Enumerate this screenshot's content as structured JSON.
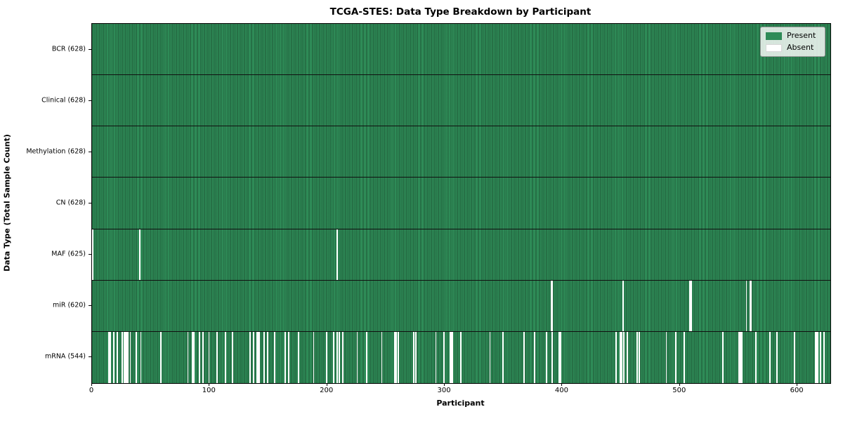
{
  "chart_data": {
    "type": "heatmap",
    "title": "TCGA-STES: Data Type Breakdown by Participant",
    "xlabel": "Participant",
    "ylabel": "Data Type (Total Sample Count)",
    "x_range": [
      0,
      628
    ],
    "x_ticks": [
      0,
      100,
      200,
      300,
      400,
      500,
      600
    ],
    "n_participants": 628,
    "grid": false,
    "legend_position": "upper right",
    "legend": {
      "present_label": "Present",
      "absent_label": "Absent",
      "present_color": "#2e8b57",
      "absent_color": "#ffffff"
    },
    "rows": [
      {
        "name": "bcr",
        "label": "BCR (628)",
        "present_count": 628,
        "absent_participants": []
      },
      {
        "name": "clinical",
        "label": "Clinical (628)",
        "present_count": 628,
        "absent_participants": []
      },
      {
        "name": "methylation",
        "label": "Methylation (628)",
        "present_count": 628,
        "absent_participants": []
      },
      {
        "name": "cn",
        "label": "CN (628)",
        "present_count": 628,
        "absent_participants": []
      },
      {
        "name": "maf",
        "label": "MAF (625)",
        "present_count": 625,
        "absent_participants": [
          0,
          40,
          208
        ]
      },
      {
        "name": "mir",
        "label": "miR (620)",
        "present_count": 620,
        "absent_participants": [
          390,
          391,
          451,
          508,
          509,
          556,
          559,
          560
        ]
      },
      {
        "name": "mrna",
        "label": "mRNA (544)",
        "present_count": 544,
        "absent_participants": [
          14,
          15,
          18,
          21,
          25,
          27,
          28,
          29,
          30,
          32,
          37,
          41,
          58,
          81,
          85,
          86,
          91,
          94,
          99,
          106,
          113,
          119,
          134,
          137,
          140,
          141,
          142,
          146,
          149,
          155,
          164,
          167,
          175,
          188,
          199,
          205,
          208,
          210,
          213,
          225,
          233,
          246,
          257,
          258,
          260,
          273,
          275,
          292,
          299,
          304,
          305,
          306,
          313,
          338,
          349,
          367,
          376,
          386,
          391,
          397,
          398,
          445,
          449,
          450,
          452,
          455,
          463,
          465,
          488,
          496,
          503,
          536,
          550,
          551,
          552,
          564,
          576,
          582,
          597,
          615,
          616,
          617,
          619,
          622
        ]
      }
    ]
  }
}
